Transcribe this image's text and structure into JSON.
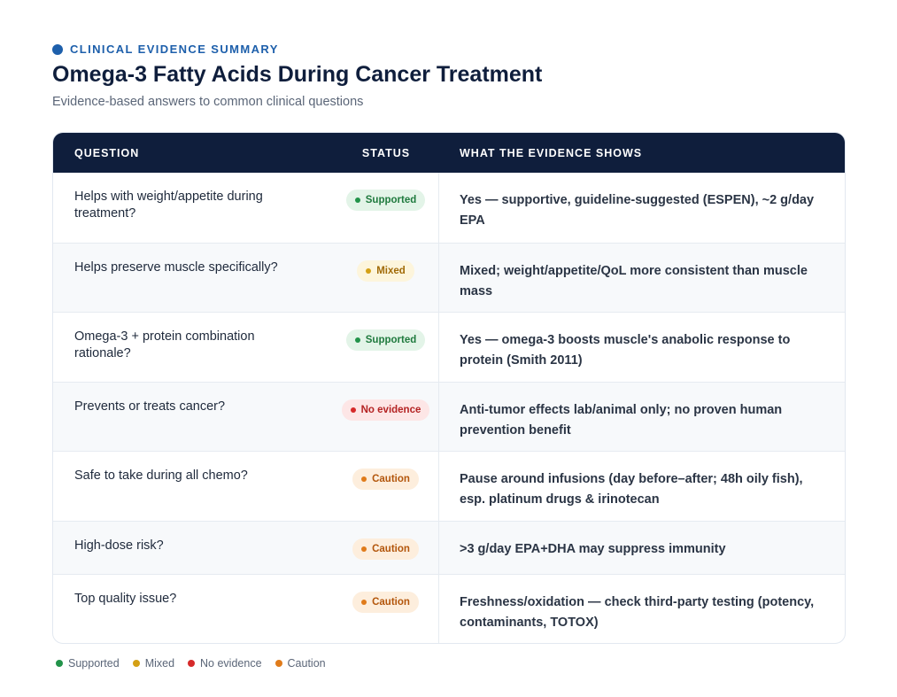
{
  "header": {
    "eyebrow": "CLINICAL EVIDENCE SUMMARY",
    "title": "Omega-3 Fatty Acids During Cancer Treatment",
    "subtitle": "Evidence-based answers to common clinical questions",
    "accent_color": "#1d5fab"
  },
  "table": {
    "columns": {
      "question": "QUESTION",
      "status": "STATUS",
      "evidence": "WHAT THE EVIDENCE SHOWS"
    },
    "rows": [
      {
        "question": "Helps with weight/appetite during treatment?",
        "status": "Supported",
        "status_key": "supported",
        "evidence": "Yes — supportive, guideline-suggested (ESPEN), ~2 g/day EPA"
      },
      {
        "question": "Helps preserve muscle specifically?",
        "status": "Mixed",
        "status_key": "mixed",
        "evidence": "Mixed; weight/appetite/QoL more consistent than muscle mass"
      },
      {
        "question": "Omega-3 + protein combination rationale?",
        "status": "Supported",
        "status_key": "supported",
        "evidence": "Yes — omega-3 boosts muscle's anabolic response to protein (Smith 2011)"
      },
      {
        "question": "Prevents or treats cancer?",
        "status": "No evidence",
        "status_key": "none",
        "evidence": "Anti-tumor effects lab/animal only; no proven human prevention benefit"
      },
      {
        "question": "Safe to take during all chemo?",
        "status": "Caution",
        "status_key": "caution",
        "evidence": "Pause around infusions (day before–after; 48h oily fish), esp. platinum drugs & irinotecan"
      },
      {
        "question": "High-dose risk?",
        "status": "Caution",
        "status_key": "caution",
        "evidence": ">3 g/day EPA+DHA may suppress immunity"
      },
      {
        "question": "Top quality issue?",
        "status": "Caution",
        "status_key": "caution",
        "evidence": "Freshness/oxidation — check third-party testing (potency, contaminants, TOTOX)"
      }
    ]
  },
  "status_styles": {
    "supported": {
      "bg": "#e3f4e8",
      "fg": "#1f7a3e",
      "dot": "#22934a"
    },
    "mixed": {
      "bg": "#fdf5dc",
      "fg": "#a16a07",
      "dot": "#d4a015"
    },
    "none": {
      "bg": "#fde6e6",
      "fg": "#b42323",
      "dot": "#d62a2a"
    },
    "caution": {
      "bg": "#fdeedd",
      "fg": "#b3560c",
      "dot": "#e07b1a"
    }
  },
  "legend": [
    {
      "label": "Supported",
      "color": "#22934a"
    },
    {
      "label": "Mixed",
      "color": "#d4a015"
    },
    {
      "label": "No evidence",
      "color": "#d62a2a"
    },
    {
      "label": "Caution",
      "color": "#e07b1a"
    }
  ]
}
